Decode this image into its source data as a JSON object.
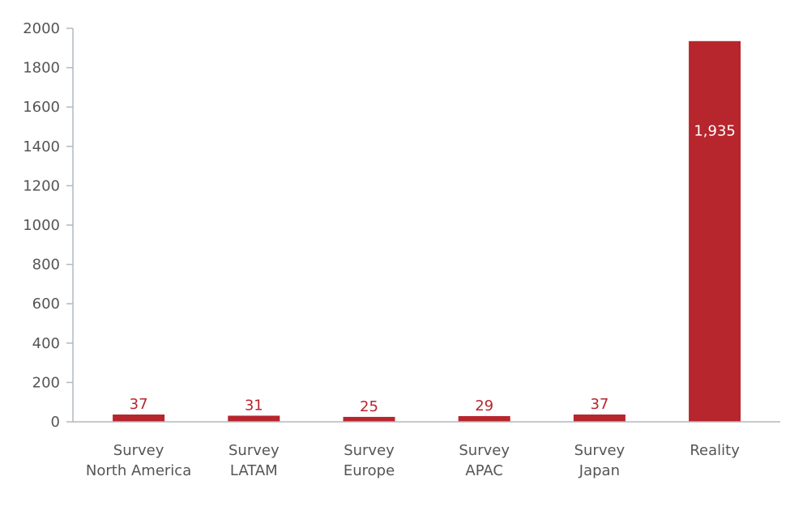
{
  "chart_data": {
    "type": "bar",
    "categories": [
      [
        "Survey",
        "North America"
      ],
      [
        "Survey",
        "LATAM"
      ],
      [
        "Survey",
        "Europe"
      ],
      [
        "Survey",
        "APAC"
      ],
      [
        "Survey",
        "Japan"
      ],
      [
        "Reality"
      ]
    ],
    "values": [
      37,
      31,
      25,
      29,
      37,
      1935
    ],
    "data_labels": [
      "37",
      "31",
      "25",
      "29",
      "37",
      "1,935"
    ],
    "yticks": [
      "0",
      "200",
      "400",
      "600",
      "800",
      "1000",
      "1200",
      "1400",
      "1600",
      "1800",
      "2000"
    ],
    "ylim": [
      0,
      2000
    ],
    "bar_color": "#b7252d",
    "axis_color": "#b0b8bf",
    "label_color": "#555555",
    "grid": false,
    "legend": "none",
    "title": "",
    "xlabel": "",
    "ylabel": ""
  }
}
